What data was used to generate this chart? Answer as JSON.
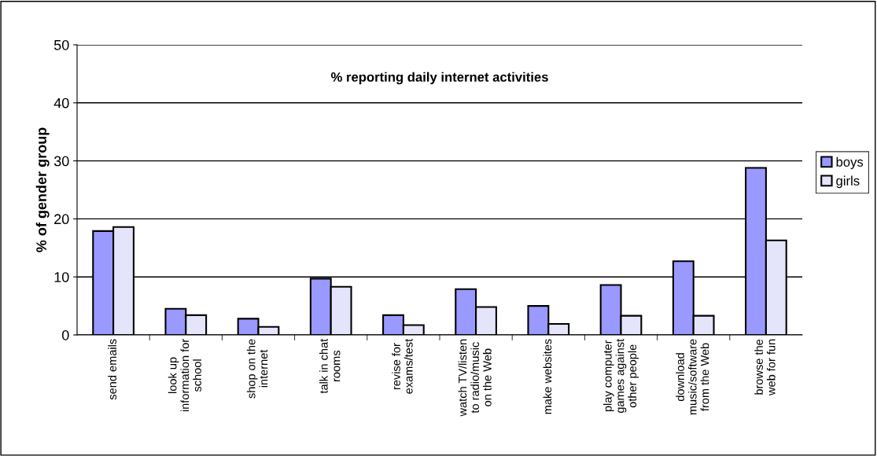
{
  "chart_data": {
    "type": "bar",
    "title": "% reporting daily internet activities",
    "ylabel": "% of gender group",
    "categories": [
      "send emails",
      "look up\ninformation for\nschool",
      "shop on the\ninternet",
      "talk in chat\nrooms",
      "revise for\nexams/test",
      "watch TV/listen\nto radio/music\non the Web",
      "make websites",
      "play computer\ngames against\nother people",
      "download\nmusic/software\nfrom the Web",
      "browse the\nweb for fun"
    ],
    "series": [
      {
        "name": "boys",
        "color": "#9999ff",
        "values": [
          17.9,
          4.5,
          2.8,
          9.7,
          3.4,
          7.9,
          5.0,
          8.6,
          12.7,
          28.8
        ]
      },
      {
        "name": "girls",
        "color": "#e4e4fa",
        "values": [
          18.6,
          3.4,
          1.4,
          8.3,
          1.7,
          4.8,
          1.9,
          3.3,
          3.3,
          16.3
        ]
      }
    ],
    "ylim": [
      0,
      50
    ],
    "yticks": [
      0,
      10,
      20,
      30,
      40,
      50
    ],
    "grid": "y",
    "legend": "right"
  }
}
